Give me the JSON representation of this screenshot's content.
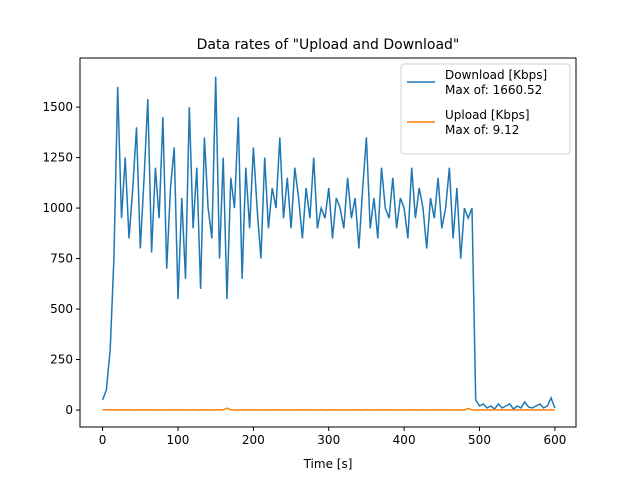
{
  "chart_data": {
    "type": "line",
    "title": "Data rates of \"Upload and Download\"",
    "x_label": "Time [s]",
    "x": [
      0,
      5,
      10,
      15,
      20,
      25,
      30,
      35,
      40,
      45,
      50,
      55,
      60,
      65,
      70,
      75,
      80,
      85,
      90,
      95,
      100,
      105,
      110,
      115,
      120,
      125,
      130,
      135,
      140,
      145,
      150,
      155,
      160,
      165,
      170,
      175,
      180,
      185,
      190,
      195,
      200,
      205,
      210,
      215,
      220,
      225,
      230,
      235,
      240,
      245,
      250,
      255,
      260,
      265,
      270,
      275,
      280,
      285,
      290,
      295,
      300,
      305,
      310,
      315,
      320,
      325,
      330,
      335,
      340,
      345,
      350,
      355,
      360,
      365,
      370,
      375,
      380,
      385,
      390,
      395,
      400,
      405,
      410,
      415,
      420,
      425,
      430,
      435,
      440,
      445,
      450,
      455,
      460,
      465,
      470,
      475,
      480,
      485,
      490,
      495,
      500,
      505,
      510,
      515,
      520,
      525,
      530,
      535,
      540,
      545,
      550,
      555,
      560,
      565,
      570,
      575,
      580,
      585,
      590,
      595,
      600
    ],
    "series": [
      {
        "name": "Download [Kbps]",
        "max_label": "Max of: 1660.52",
        "color": "#1f77b4",
        "values": [
          50,
          100,
          300,
          750,
          1600,
          950,
          1250,
          850,
          1100,
          1400,
          800,
          1150,
          1540,
          780,
          1200,
          950,
          1450,
          700,
          1100,
          1300,
          550,
          1050,
          650,
          1500,
          900,
          1200,
          600,
          1350,
          1000,
          850,
          1650,
          750,
          1250,
          550,
          1150,
          1000,
          1450,
          650,
          1200,
          900,
          1300,
          1000,
          750,
          1250,
          900,
          1100,
          1000,
          1350,
          950,
          1150,
          900,
          1200,
          1050,
          850,
          1100,
          950,
          1250,
          900,
          1000,
          950,
          1100,
          850,
          1050,
          1000,
          900,
          1150,
          950,
          1050,
          800,
          1100,
          1350,
          900,
          1050,
          850,
          1200,
          1000,
          950,
          1150,
          900,
          1050,
          1000,
          850,
          1200,
          950,
          1100,
          1000,
          800,
          1050,
          950,
          1150,
          900,
          1000,
          1200,
          850,
          1100,
          750,
          1000,
          950,
          1000,
          50,
          20,
          30,
          10,
          20,
          5,
          30,
          10,
          20,
          30,
          5,
          20,
          10,
          40,
          15,
          10,
          20,
          30,
          10,
          20,
          60,
          10
        ]
      },
      {
        "name": "Upload [Kbps]",
        "max_label": "Max of: 9.12",
        "color": "#ff7f0e",
        "values": [
          1,
          1,
          0,
          1,
          0,
          1,
          0,
          1,
          0,
          0,
          1,
          0,
          1,
          0,
          0,
          1,
          0,
          0,
          1,
          0,
          0,
          1,
          0,
          0,
          1,
          0,
          0,
          1,
          0,
          0,
          1,
          0,
          1,
          9.12,
          1,
          0,
          0,
          1,
          0,
          0,
          1,
          0,
          0,
          1,
          0,
          0,
          1,
          0,
          0,
          1,
          0,
          0,
          1,
          0,
          0,
          1,
          0,
          0,
          1,
          0,
          0,
          1,
          0,
          0,
          1,
          0,
          0,
          1,
          0,
          0,
          1,
          0,
          0,
          1,
          0,
          0,
          1,
          0,
          0,
          1,
          0,
          0,
          1,
          0,
          0,
          1,
          0,
          0,
          1,
          0,
          0,
          1,
          0,
          0,
          1,
          0,
          0,
          8,
          1,
          0,
          0,
          1,
          0,
          0,
          1,
          0,
          0,
          1,
          0,
          0,
          1,
          0,
          0,
          1,
          0,
          0,
          1,
          0,
          0,
          1,
          0
        ]
      }
    ],
    "xlim": [
      -30,
      628
    ],
    "xticks": [
      0,
      100,
      200,
      300,
      400,
      500,
      600
    ],
    "ylim": [
      -84,
      1743
    ],
    "yticks": [
      0,
      250,
      500,
      750,
      1000,
      1250,
      1500
    ],
    "legend": "upper right",
    "grid": false
  }
}
